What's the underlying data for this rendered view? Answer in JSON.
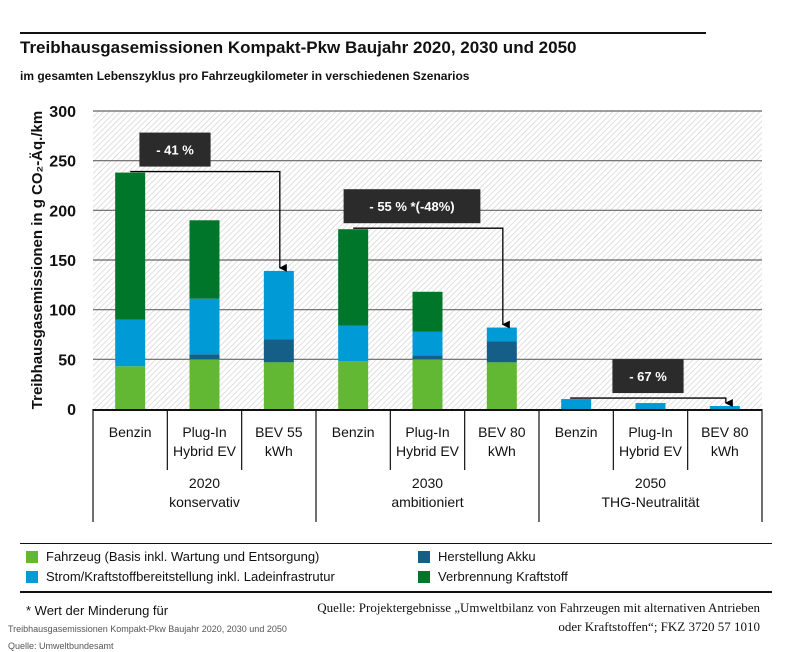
{
  "title": "Treibhausgasemissionen Kompakt-Pkw Baujahr 2020, 2030 und 2050",
  "subtitle": "im gesamten Lebenszyklus pro Fahrzeugkilometer in verschiedenen Szenarios",
  "chart_data": {
    "type": "bar",
    "stacked": true,
    "ylabel": "Treibhausgasemissionen in g CO₂-Äq./km",
    "ylim": [
      0,
      300
    ],
    "yticks": [
      "0",
      "50",
      "100",
      "150",
      "200",
      "250",
      "300"
    ],
    "grid": true,
    "categories": [
      {
        "label1": "Benzin",
        "label2": ""
      },
      {
        "label1": "Plug-In",
        "label2": "Hybrid EV"
      },
      {
        "label1": "BEV 55",
        "label2": "kWh"
      },
      {
        "label1": "Benzin",
        "label2": ""
      },
      {
        "label1": "Plug-In",
        "label2": "Hybrid EV"
      },
      {
        "label1": "BEV 80",
        "label2": "kWh"
      },
      {
        "label1": "Benzin",
        "label2": ""
      },
      {
        "label1": "Plug-In",
        "label2": "Hybrid EV"
      },
      {
        "label1": "BEV 80",
        "label2": "kWh"
      }
    ],
    "groups": [
      {
        "year": "2020",
        "scenario": "konservativ"
      },
      {
        "year": "2030",
        "scenario": "ambitioniert"
      },
      {
        "year": "2050",
        "scenario": "THG-Neutralität"
      }
    ],
    "series": [
      {
        "name": "Fahrzeug (Basis inkl. Wartung und Entsorgung)",
        "color": "#62b833",
        "values": [
          43,
          50,
          47,
          48,
          50,
          47,
          0,
          0,
          0
        ]
      },
      {
        "name": "Herstellung Akku",
        "color": "#155e87",
        "values": [
          0,
          5,
          23,
          0,
          4,
          21,
          0,
          0,
          0
        ]
      },
      {
        "name": "Strom/Kraftstoffbereitstellung inkl. Ladeinfrastrutur",
        "color": "#009ad7",
        "values": [
          47,
          56,
          69,
          36,
          24,
          14,
          10,
          6,
          3
        ]
      },
      {
        "name": "Verbrennung Kraftstoff",
        "color": "#00762b",
        "values": [
          148,
          79,
          0,
          97,
          40,
          0,
          0,
          0,
          0
        ]
      }
    ],
    "annotations": [
      {
        "label": "- 41 %",
        "from": 0,
        "to": 2
      },
      {
        "label": "- 55 % *(-48%)",
        "from": 3,
        "to": 5
      },
      {
        "label": "- 67 %",
        "from": 6,
        "to": 8
      }
    ],
    "legend": "bottom"
  },
  "footnote": "* Wert der Minderung für",
  "source_line1": "Quelle: Projektergebnisse „Umweltbilanz von Fahrzeugen mit alternativen Antrieben",
  "source_line2": "oder Kraftstoffen“; FKZ 3720 57 1010",
  "caption": "Treibhausgasemissionen Kompakt-Pkw Baujahr 2020, 2030 und 2050",
  "caption_source": "Quelle: Umweltbundesamt"
}
